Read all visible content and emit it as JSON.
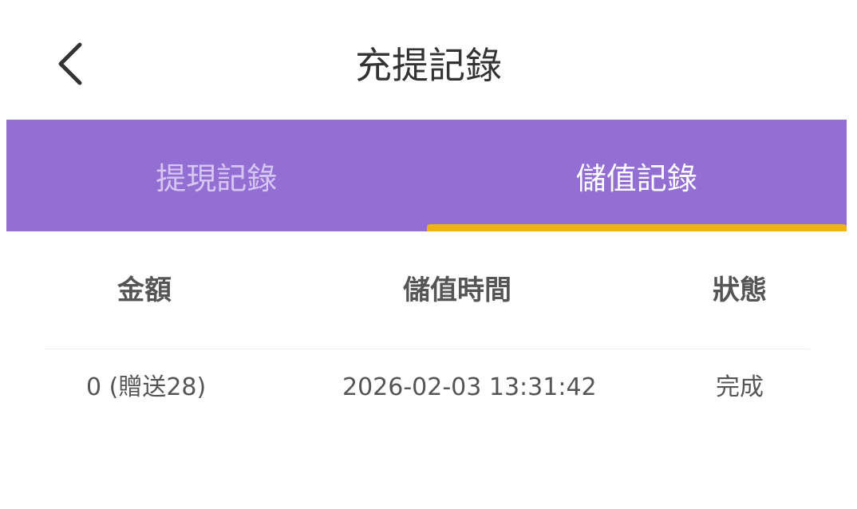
{
  "header": {
    "title": "充提記錄",
    "back_icon": "chevron-left-icon"
  },
  "tabs": [
    {
      "label": "提現記錄",
      "active": false
    },
    {
      "label": "儲值記錄",
      "active": true
    }
  ],
  "colors": {
    "tab_bar": "#936fd4",
    "indicator": "#efb318"
  },
  "table": {
    "columns": [
      "金額",
      "儲值時間",
      "狀態"
    ],
    "rows": [
      [
        "0 (贈送28)",
        "2026-02-03 13:31:42",
        "完成"
      ]
    ]
  }
}
